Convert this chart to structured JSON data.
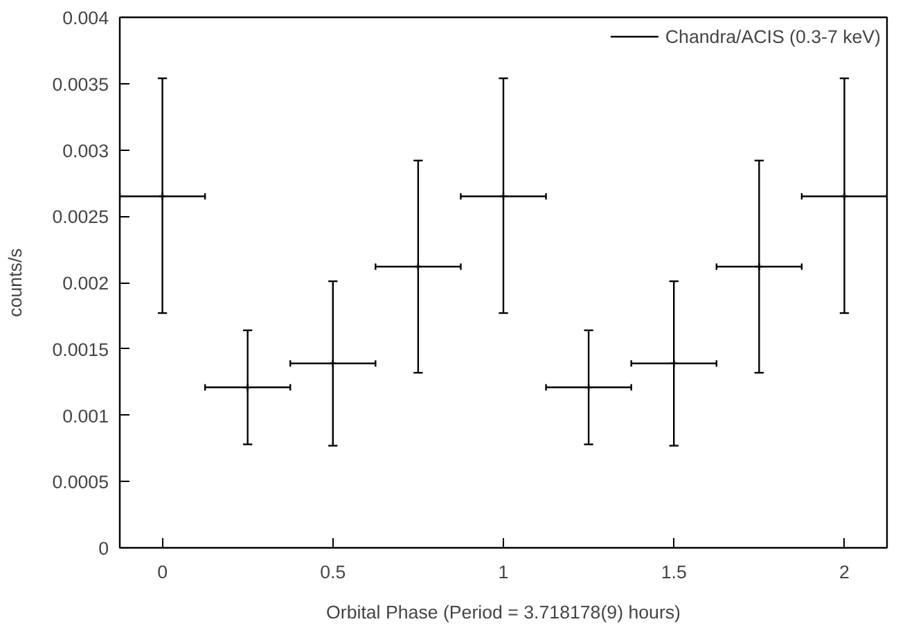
{
  "chart_data": {
    "type": "scatter",
    "xlabel": "Orbital Phase (Period = 3.718178(9) hours)",
    "ylabel": "counts/s",
    "x": [
      0,
      0.25,
      0.5,
      0.75,
      1,
      1.25,
      1.5,
      1.75,
      2
    ],
    "series": [
      {
        "name": "Chandra/ACIS (0.3-7 keV)",
        "color": "#000000",
        "values": [
          0.00265,
          0.00121,
          0.00139,
          0.00212,
          0.00265,
          0.00121,
          0.00139,
          0.00212,
          0.00265
        ],
        "errors": [
          [
            0.00177,
            0.00354
          ],
          [
            0.00078,
            0.00164
          ],
          [
            0.00077,
            0.00201
          ],
          [
            0.00132,
            0.00292
          ],
          [
            0.00177,
            0.00354
          ],
          [
            0.00078,
            0.00164
          ],
          [
            0.00077,
            0.00201
          ],
          [
            0.00132,
            0.00292
          ],
          [
            0.00177,
            0.00354
          ]
        ],
        "xerrors": [
          0.125,
          0.125,
          0.125,
          0.125,
          0.125,
          0.125,
          0.125,
          0.125,
          0.125
        ]
      }
    ],
    "marker": "cross",
    "grid": false,
    "legend": "top right",
    "xlim": [
      -0.125,
      2.125
    ],
    "ylim": [
      0,
      0.004
    ],
    "xticks": [
      0,
      0.5,
      1,
      1.5,
      2
    ],
    "yticks": [
      0,
      0.0005,
      0.001,
      0.0015,
      0.002,
      0.0025,
      0.003,
      0.0035,
      0.004
    ]
  }
}
